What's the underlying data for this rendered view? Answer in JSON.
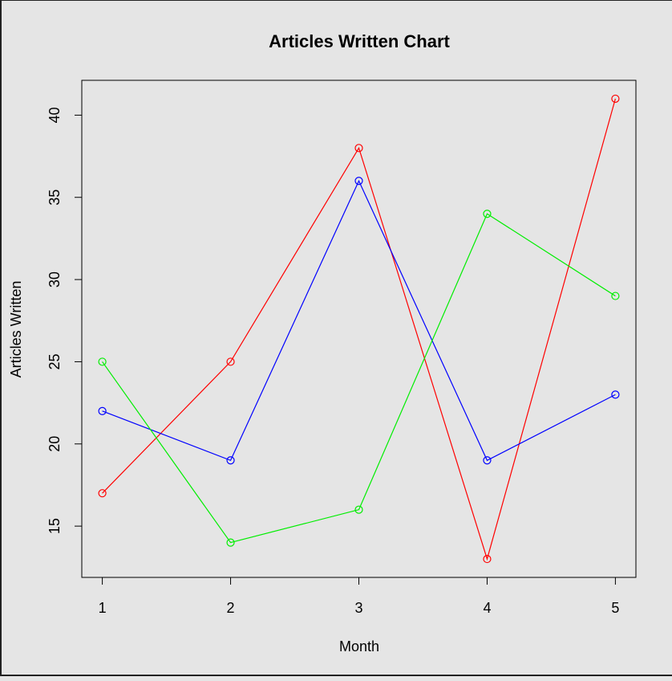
{
  "chart_data": {
    "type": "line",
    "title": "Articles Written Chart",
    "xlabel": "Month",
    "ylabel": "Articles Written",
    "x": [
      1,
      2,
      3,
      4,
      5
    ],
    "x_ticks": [
      "1",
      "2",
      "3",
      "4",
      "5"
    ],
    "y_ticks": [
      "15",
      "20",
      "25",
      "30",
      "35",
      "40"
    ],
    "xlim": [
      0.84,
      5.16
    ],
    "ylim": [
      11.88,
      42.12
    ],
    "grid": false,
    "legend": "none",
    "markers": "open-circle",
    "series": [
      {
        "color": "#ff0000",
        "values": [
          17,
          25,
          38,
          13,
          41
        ]
      },
      {
        "color": "#0000ff",
        "values": [
          22,
          19,
          36,
          19,
          23
        ]
      },
      {
        "color": "#00ee00",
        "values": [
          25,
          14,
          16,
          34,
          29
        ]
      }
    ]
  },
  "colors": {
    "background": "#e5e5e5",
    "axis": "#000000"
  }
}
